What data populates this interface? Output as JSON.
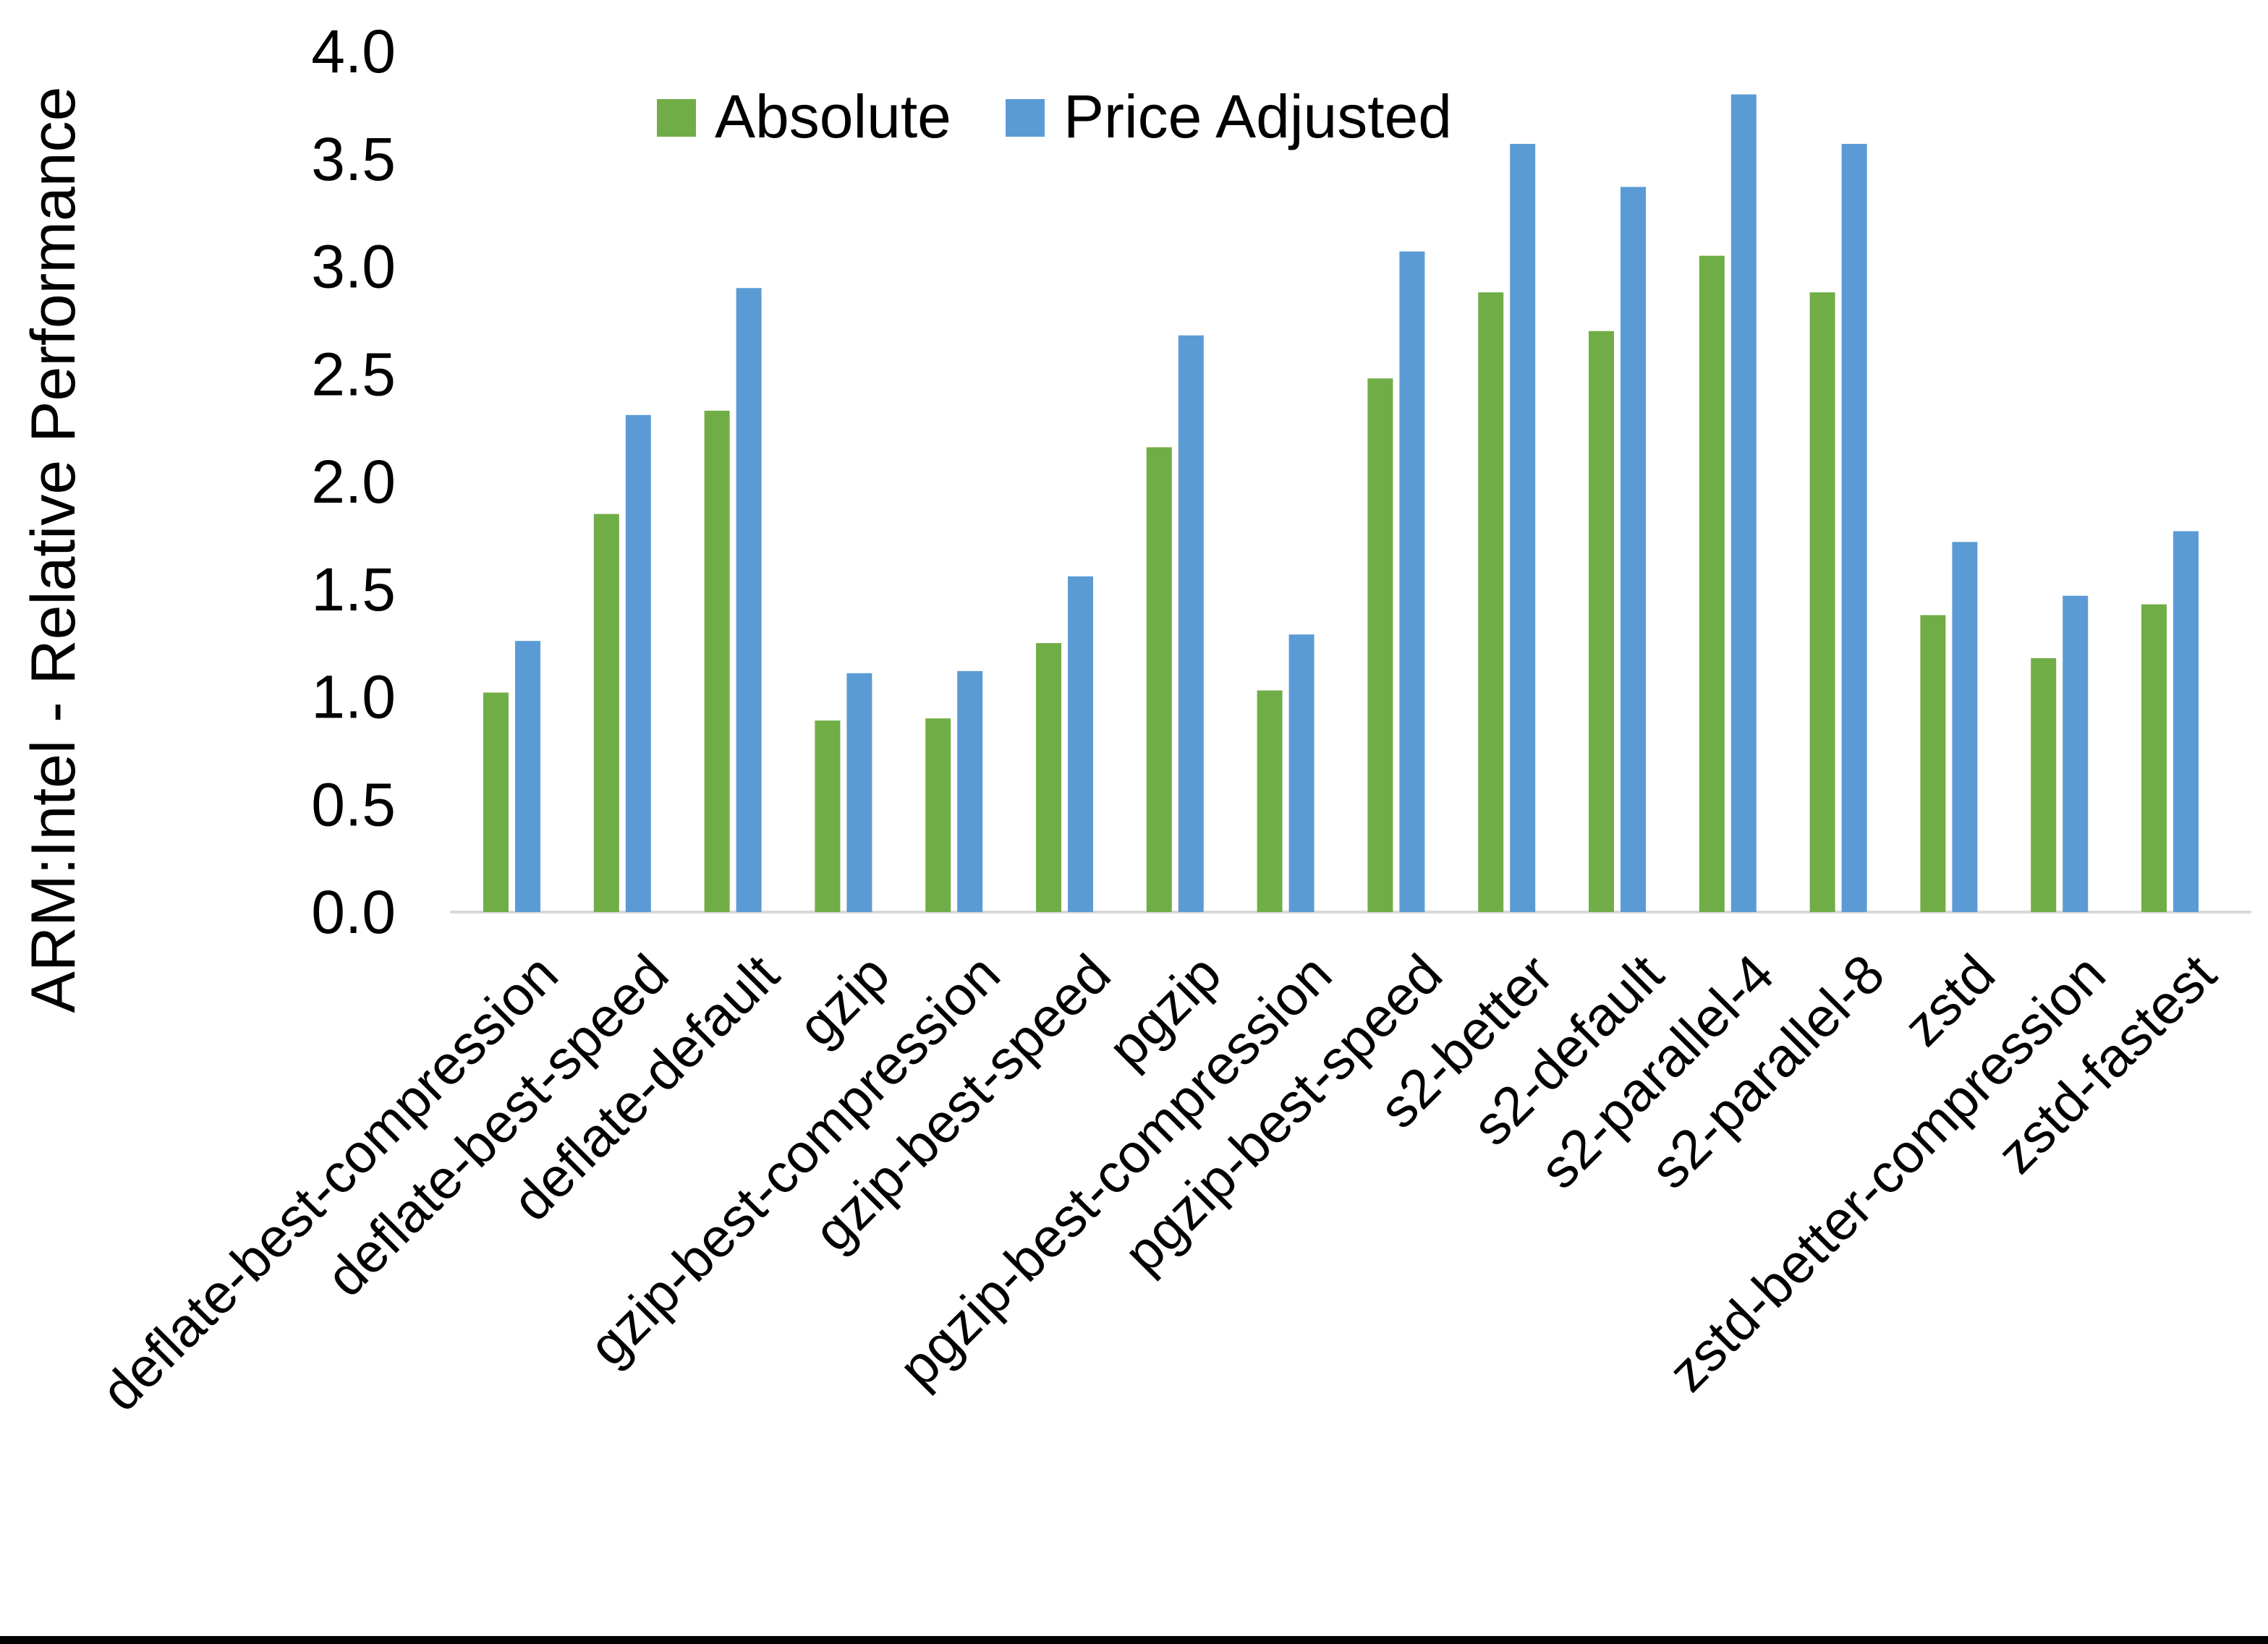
{
  "page": {
    "background_color": "#ffffff",
    "bottom_border_color": "#000000"
  },
  "chart_data": {
    "type": "bar",
    "title": "",
    "xlabel": "",
    "ylabel": "ARM:Intel - Relative Performance",
    "ylim": [
      0.0,
      4.0
    ],
    "ytick_step": 0.5,
    "ytick_labels": [
      "0.0",
      "0.5",
      "1.0",
      "1.5",
      "2.0",
      "2.5",
      "3.0",
      "3.5",
      "4.0"
    ],
    "grid": false,
    "legend_position": "top-center",
    "axis_line_color": "#D9D9D9",
    "text_color": "#000000",
    "categories": [
      "deflate-best-compression",
      "deflate-best-speed",
      "deflate-default",
      "gzip",
      "gzip-best-compression",
      "gzip-best-speed",
      "pgzip",
      "pgzip-best-compression",
      "pgzip-best-speed",
      "s2-better",
      "s2-default",
      "s2-parallel-4",
      "s2-parallel-8",
      "zstd",
      "zstd-better-compression",
      "zstd-fastest"
    ],
    "series": [
      {
        "name": "Absolute",
        "color": "#70AD47",
        "values": [
          1.02,
          1.85,
          2.33,
          0.89,
          0.9,
          1.25,
          2.16,
          1.03,
          2.48,
          2.88,
          2.7,
          3.05,
          2.88,
          1.38,
          1.18,
          1.43
        ]
      },
      {
        "name": "Price Adjusted",
        "color": "#5B9BD5",
        "values": [
          1.26,
          2.31,
          2.9,
          1.11,
          1.12,
          1.56,
          2.68,
          1.29,
          3.07,
          3.57,
          3.37,
          3.8,
          3.57,
          1.72,
          1.47,
          1.77
        ]
      }
    ]
  }
}
